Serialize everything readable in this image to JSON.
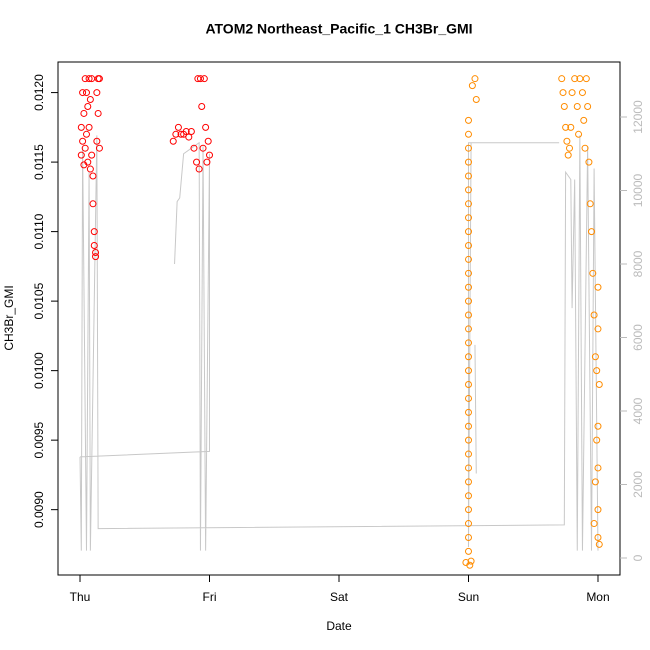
{
  "chart_data": {
    "type": "scatter",
    "title": "ATOM2 Northeast_Pacific_1 CH3Br_GMI",
    "xlabel": "Date",
    "ylabel": "CH3Br_GMI",
    "xlim": [
      -0.17,
      4.17
    ],
    "xticks": [
      {
        "value": 0,
        "label": "Thu"
      },
      {
        "value": 1,
        "label": "Fri"
      },
      {
        "value": 2,
        "label": "Sat"
      },
      {
        "value": 3,
        "label": "Sun"
      },
      {
        "value": 4,
        "label": "Mon"
      }
    ],
    "ylim": [
      0.00853,
      0.01222
    ],
    "yticks": [
      {
        "value": 0.009,
        "label": "0.0090"
      },
      0.0095,
      {
        "value": 0.01,
        "label": "0.0100"
      },
      0.0105,
      {
        "value": 0.011,
        "label": "0.0110"
      },
      0.0115,
      {
        "value": 0.012,
        "label": "0.0120"
      }
    ],
    "y2lim": [
      -463,
      13497
    ],
    "y2ticks": [
      0,
      2000,
      4000,
      6000,
      8000,
      10000,
      12000
    ],
    "series": [
      {
        "color": "#ff0000",
        "x": [
          0.01,
          0.01,
          0.02,
          0.02,
          0.03,
          0.03,
          0.04,
          0.04,
          0.05,
          0.05,
          0.06,
          0.06,
          0.07,
          0.07,
          0.08,
          0.08,
          0.09,
          0.09,
          0.1,
          0.1,
          0.11,
          0.11,
          0.12,
          0.12,
          0.13,
          0.13,
          0.14,
          0.14,
          0.15,
          0.15,
          0.72,
          0.74,
          0.76,
          0.78,
          0.8,
          0.82,
          0.84,
          0.86,
          0.88,
          0.9,
          0.91,
          0.92,
          0.93,
          0.94,
          0.95,
          0.96,
          0.97,
          0.98,
          0.99,
          1.0
        ],
        "values": [
          0.01155,
          0.01175,
          0.012,
          0.01165,
          0.01148,
          0.01185,
          0.0121,
          0.0116,
          0.0117,
          0.012,
          0.0115,
          0.0119,
          0.0121,
          0.01175,
          0.01145,
          0.01195,
          0.0121,
          0.01155,
          0.0114,
          0.0112,
          0.011,
          0.0109,
          0.01085,
          0.01082,
          0.012,
          0.01165,
          0.0121,
          0.01185,
          0.0121,
          0.0116,
          0.01165,
          0.0117,
          0.01175,
          0.0117,
          0.0117,
          0.01172,
          0.01168,
          0.01172,
          0.0116,
          0.0115,
          0.0121,
          0.01145,
          0.0121,
          0.0119,
          0.0116,
          0.0121,
          0.01175,
          0.0115,
          0.01165,
          0.01155
        ]
      },
      {
        "color": "#ff8c00",
        "x": [
          2.98,
          3.02,
          3.01,
          3.0,
          3.0,
          3.0,
          3.0,
          3.0,
          3.0,
          3.0,
          3.0,
          3.0,
          3.0,
          3.0,
          3.0,
          3.0,
          3.0,
          3.0,
          3.0,
          3.0,
          3.0,
          3.0,
          3.0,
          3.0,
          3.0,
          3.0,
          3.0,
          3.0,
          3.0,
          3.0,
          3.0,
          3.0,
          3.0,
          3.0,
          3.0,
          3.03,
          3.05,
          3.06,
          3.72,
          3.73,
          3.74,
          3.75,
          3.76,
          3.77,
          3.78,
          3.79,
          3.8,
          3.82,
          3.84,
          3.85,
          3.86,
          3.88,
          3.89,
          3.9,
          3.91,
          3.92,
          3.93,
          3.94,
          3.95,
          3.96,
          3.97,
          3.98,
          3.99,
          4.0,
          4.0,
          4.01,
          4.0,
          4.0,
          4.0,
          4.0,
          4.01,
          3.99,
          3.98,
          3.97
        ],
        "values": [
          0.00862,
          0.00863,
          0.0086,
          0.0087,
          0.0088,
          0.0089,
          0.009,
          0.0091,
          0.0092,
          0.0093,
          0.0094,
          0.0095,
          0.0096,
          0.0097,
          0.0098,
          0.0099,
          0.01,
          0.0101,
          0.0102,
          0.0103,
          0.0104,
          0.0105,
          0.0106,
          0.0107,
          0.0108,
          0.0109,
          0.011,
          0.0111,
          0.0112,
          0.0113,
          0.0114,
          0.0115,
          0.0116,
          0.0117,
          0.0118,
          0.01205,
          0.0121,
          0.01195,
          0.0121,
          0.012,
          0.0119,
          0.01175,
          0.01165,
          0.01155,
          0.0116,
          0.01175,
          0.012,
          0.0121,
          0.0119,
          0.0117,
          0.0121,
          0.012,
          0.0118,
          0.0116,
          0.0121,
          0.0119,
          0.0115,
          0.0112,
          0.011,
          0.0107,
          0.0104,
          0.0101,
          0.01,
          0.0103,
          0.0106,
          0.0099,
          0.0096,
          0.0093,
          0.009,
          0.0088,
          0.00875,
          0.0095,
          0.0092,
          0.0089
        ]
      },
      {
        "type": "line",
        "axis": "y2",
        "color": "#c8c8c8",
        "x": [
          0.0,
          0.01,
          0.02,
          0.05,
          0.07,
          0.08,
          0.13,
          0.14,
          3.74,
          3.75,
          3.79,
          3.8,
          3.82,
          3.84,
          3.86,
          3.88,
          3.92,
          3.95,
          3.97,
          4.0,
          null,
          0.73,
          0.75,
          0.77,
          0.8,
          0.92,
          0.93,
          0.95,
          0.97,
          1.0,
          1.0,
          0.0,
          null,
          3.7,
          3.0,
          3.0,
          3.02,
          null,
          3.05,
          3.06
        ],
        "values": [
          2750,
          200,
          11200,
          200,
          10500,
          200,
          11500,
          800,
          900,
          10500,
          10300,
          6800,
          10300,
          200,
          11500,
          200,
          11200,
          200,
          10600,
          200,
          null,
          8000,
          9700,
          9800,
          11000,
          11300,
          200,
          11200,
          200,
          11000,
          2900,
          2750,
          null,
          11300,
          11300,
          300,
          11300,
          null,
          5800,
          2300
        ]
      }
    ]
  }
}
